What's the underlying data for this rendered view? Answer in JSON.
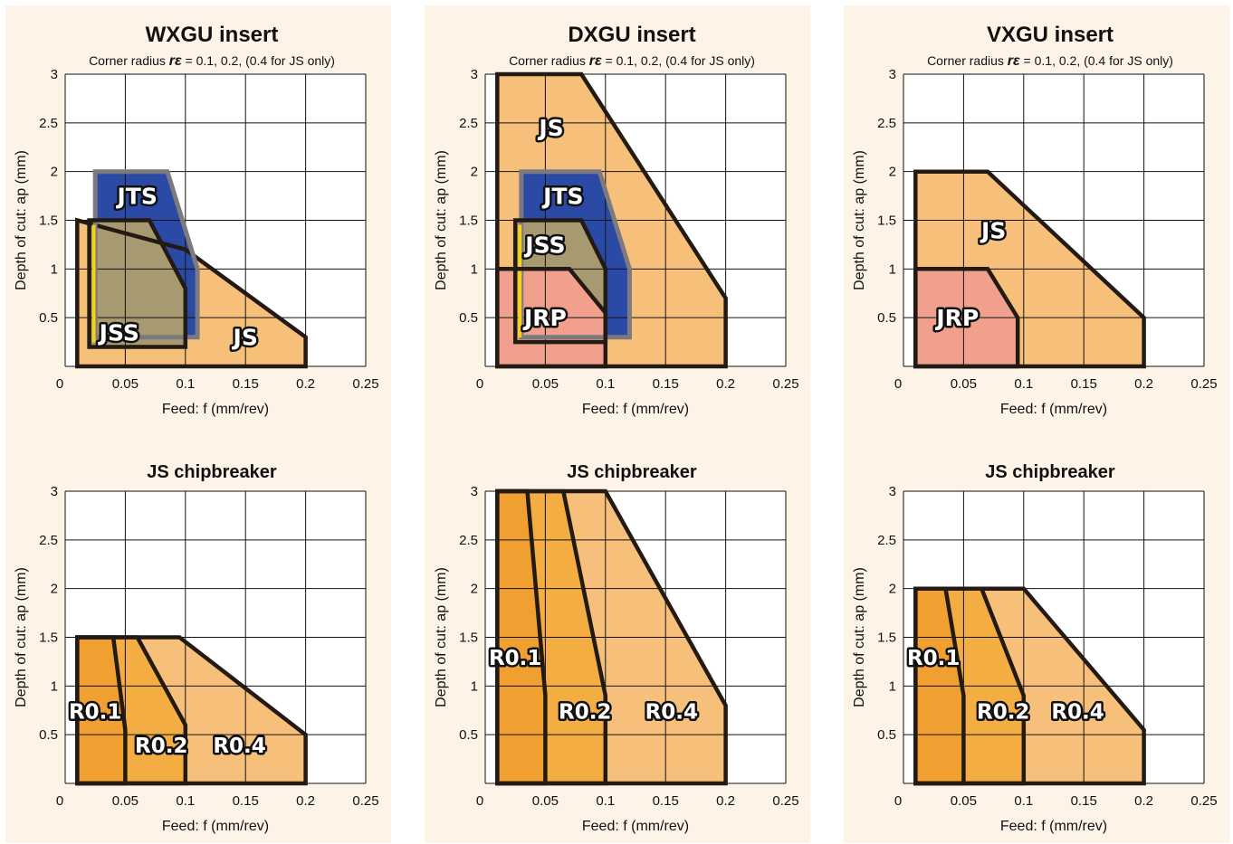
{
  "colors": {
    "panel_bg": "#fdf3e7",
    "grid": "#111111",
    "outline": "#231a14",
    "js_fill": "#f7c07a",
    "jts_fill": "#2a4aa6",
    "jts_edge": "#7a7a80",
    "jss_fill": "#a89a70",
    "jss_yellow": "#f5d21a",
    "jrp_fill": "#f0a08c",
    "r01_fill": "#f0a030",
    "r02_fill": "#f3ad43",
    "r04_fill": "#f7c07a"
  },
  "chart_data": [
    {
      "type": "area",
      "title": "WXGU insert",
      "subtitle_prefix": "Corner radius ",
      "subtitle_symbol": "rε",
      "subtitle_suffix": " = 0.1, 0.2, (0.4 for JS only)",
      "xlabel": "Feed: f  (mm/rev)",
      "ylabel": "Depth of cut: ap (mm)",
      "xlim": [
        0,
        0.25
      ],
      "ylim": [
        0,
        3
      ],
      "xticks": [
        "0",
        "0.05",
        "0.1",
        "0.15",
        "0.2",
        "0.25"
      ],
      "yticks": [
        "0.5",
        "1",
        "1.5",
        "2",
        "2.5",
        "3"
      ],
      "grid": true,
      "regions": [
        {
          "name": "JS",
          "points": [
            [
              0.01,
              0
            ],
            [
              0.01,
              1.5
            ],
            [
              0.1,
              1.2
            ],
            [
              0.2,
              0.3
            ],
            [
              0.2,
              0
            ]
          ],
          "label": [
            0.15,
            0.3
          ],
          "color": "js"
        },
        {
          "name": "JTS",
          "points": [
            [
              0.025,
              2.0
            ],
            [
              0.085,
              2.0
            ],
            [
              0.11,
              1.0
            ],
            [
              0.11,
              0.3
            ],
            [
              0.025,
              0.3
            ]
          ],
          "label": [
            0.06,
            1.75
          ],
          "color": "jts"
        },
        {
          "name": "JSS",
          "points": [
            [
              0.02,
              0.2
            ],
            [
              0.02,
              1.5
            ],
            [
              0.07,
              1.5
            ],
            [
              0.1,
              0.8
            ],
            [
              0.1,
              0.2
            ]
          ],
          "label": [
            0.045,
            0.35
          ],
          "color": "jss"
        }
      ]
    },
    {
      "type": "area",
      "title": "DXGU insert",
      "subtitle_prefix": "Corner radius ",
      "subtitle_symbol": "rε",
      "subtitle_suffix": " = 0.1, 0.2, (0.4 for JS only)",
      "xlabel": "Feed: f  (mm/rev)",
      "ylabel": "Depth of cut: ap (mm)",
      "xlim": [
        0,
        0.25
      ],
      "ylim": [
        0,
        3
      ],
      "xticks": [
        "0",
        "0.05",
        "0.1",
        "0.15",
        "0.2",
        "0.25"
      ],
      "yticks": [
        "0.5",
        "1",
        "1.5",
        "2",
        "2.5",
        "3"
      ],
      "grid": true,
      "regions": [
        {
          "name": "JS",
          "points": [
            [
              0.01,
              0
            ],
            [
              0.01,
              3.0
            ],
            [
              0.08,
              3.0
            ],
            [
              0.2,
              0.7
            ],
            [
              0.2,
              0
            ]
          ],
          "label": [
            0.055,
            2.45
          ],
          "color": "js"
        },
        {
          "name": "JTS",
          "points": [
            [
              0.03,
              2.0
            ],
            [
              0.095,
              2.0
            ],
            [
              0.12,
              1.0
            ],
            [
              0.12,
              0.3
            ],
            [
              0.03,
              0.3
            ]
          ],
          "label": [
            0.065,
            1.75
          ],
          "color": "jts"
        },
        {
          "name": "JSS",
          "points": [
            [
              0.025,
              0.25
            ],
            [
              0.025,
              1.5
            ],
            [
              0.08,
              1.5
            ],
            [
              0.1,
              1.0
            ],
            [
              0.1,
              0.25
            ]
          ],
          "label": [
            0.05,
            1.25
          ],
          "color": "jss"
        },
        {
          "name": "JRP",
          "points": [
            [
              0.01,
              0
            ],
            [
              0.01,
              1.0
            ],
            [
              0.07,
              1.0
            ],
            [
              0.1,
              0.55
            ],
            [
              0.1,
              0
            ]
          ],
          "label": [
            0.05,
            0.5
          ],
          "color": "jrp"
        }
      ]
    },
    {
      "type": "area",
      "title": "VXGU insert",
      "subtitle_prefix": "Corner radius ",
      "subtitle_symbol": "rε",
      "subtitle_suffix": " = 0.1, 0.2, (0.4 for JS only)",
      "xlabel": "Feed: f  (mm/rev)",
      "ylabel": "Depth of cut: ap (mm)",
      "xlim": [
        0,
        0.25
      ],
      "ylim": [
        0,
        3
      ],
      "xticks": [
        "0",
        "0.05",
        "0.1",
        "0.15",
        "0.2",
        "0.25"
      ],
      "yticks": [
        "0.5",
        "1",
        "1.5",
        "2",
        "2.5",
        "3"
      ],
      "grid": true,
      "regions": [
        {
          "name": "JS",
          "points": [
            [
              0.01,
              0
            ],
            [
              0.01,
              2.0
            ],
            [
              0.07,
              2.0
            ],
            [
              0.2,
              0.5
            ],
            [
              0.2,
              0
            ]
          ],
          "label": [
            0.075,
            1.4
          ],
          "color": "js"
        },
        {
          "name": "JRP",
          "points": [
            [
              0.01,
              0
            ],
            [
              0.01,
              1.0
            ],
            [
              0.07,
              1.0
            ],
            [
              0.095,
              0.5
            ],
            [
              0.095,
              0
            ]
          ],
          "label": [
            0.045,
            0.5
          ],
          "color": "jrp"
        }
      ]
    },
    {
      "type": "area",
      "title": "JS chipbreaker",
      "xlabel": "Feed: f  (mm/rev)",
      "ylabel": "Depth of cut: ap (mm)",
      "xlim": [
        0,
        0.25
      ],
      "ylim": [
        0,
        3
      ],
      "xticks": [
        "0",
        "0.05",
        "0.1",
        "0.15",
        "0.2",
        "0.25"
      ],
      "yticks": [
        "0.5",
        "1",
        "1.5",
        "2",
        "2.5",
        "3"
      ],
      "grid": true,
      "regions": [
        {
          "name": "R0.4",
          "points": [
            [
              0.01,
              0
            ],
            [
              0.01,
              1.5
            ],
            [
              0.095,
              1.5
            ],
            [
              0.2,
              0.5
            ],
            [
              0.2,
              0
            ]
          ],
          "label": [
            0.145,
            0.4
          ],
          "color": "r04"
        },
        {
          "name": "R0.2",
          "points": [
            [
              0.01,
              0
            ],
            [
              0.01,
              1.5
            ],
            [
              0.06,
              1.5
            ],
            [
              0.1,
              0.6
            ],
            [
              0.1,
              0
            ]
          ],
          "label": [
            0.08,
            0.4
          ],
          "color": "r02"
        },
        {
          "name": "R0.1",
          "points": [
            [
              0.01,
              0
            ],
            [
              0.01,
              1.5
            ],
            [
              0.04,
              1.5
            ],
            [
              0.05,
              0.55
            ],
            [
              0.05,
              0
            ]
          ],
          "label": [
            0.025,
            0.75
          ],
          "color": "r01"
        }
      ]
    },
    {
      "type": "area",
      "title": "JS chipbreaker",
      "xlabel": "Feed: f  (mm/rev)",
      "ylabel": "Depth of cut: ap (mm)",
      "xlim": [
        0,
        0.25
      ],
      "ylim": [
        0,
        3
      ],
      "xticks": [
        "0",
        "0.05",
        "0.1",
        "0.15",
        "0.2",
        "0.25"
      ],
      "yticks": [
        "0.5",
        "1",
        "1.5",
        "2",
        "2.5",
        "3"
      ],
      "grid": true,
      "regions": [
        {
          "name": "R0.4",
          "points": [
            [
              0.01,
              0
            ],
            [
              0.01,
              3.0
            ],
            [
              0.1,
              3.0
            ],
            [
              0.2,
              0.8
            ],
            [
              0.2,
              0
            ]
          ],
          "label": [
            0.155,
            0.75
          ],
          "color": "r04"
        },
        {
          "name": "R0.2",
          "points": [
            [
              0.01,
              0
            ],
            [
              0.01,
              3.0
            ],
            [
              0.065,
              3.0
            ],
            [
              0.1,
              0.9
            ],
            [
              0.1,
              0
            ]
          ],
          "label": [
            0.083,
            0.75
          ],
          "color": "r02"
        },
        {
          "name": "R0.1",
          "points": [
            [
              0.01,
              0
            ],
            [
              0.01,
              3.0
            ],
            [
              0.035,
              3.0
            ],
            [
              0.05,
              0.9
            ],
            [
              0.05,
              0
            ]
          ],
          "label": [
            0.025,
            1.3
          ],
          "color": "r01"
        }
      ]
    },
    {
      "type": "area",
      "title": "JS chipbreaker",
      "xlabel": "Feed: f  (mm/rev)",
      "ylabel": "Depth of cut: ap (mm)",
      "xlim": [
        0,
        0.25
      ],
      "ylim": [
        0,
        3
      ],
      "xticks": [
        "0",
        "0.05",
        "0.1",
        "0.15",
        "0.2",
        "0.25"
      ],
      "yticks": [
        "0.5",
        "1",
        "1.5",
        "2",
        "2.5",
        "3"
      ],
      "grid": true,
      "regions": [
        {
          "name": "R0.4",
          "points": [
            [
              0.01,
              0
            ],
            [
              0.01,
              2.0
            ],
            [
              0.1,
              2.0
            ],
            [
              0.2,
              0.55
            ],
            [
              0.2,
              0
            ]
          ],
          "label": [
            0.145,
            0.75
          ],
          "color": "r04"
        },
        {
          "name": "R0.2",
          "points": [
            [
              0.01,
              0
            ],
            [
              0.01,
              2.0
            ],
            [
              0.065,
              2.0
            ],
            [
              0.1,
              0.9
            ],
            [
              0.1,
              0
            ]
          ],
          "label": [
            0.083,
            0.75
          ],
          "color": "r02"
        },
        {
          "name": "R0.1",
          "points": [
            [
              0.01,
              0
            ],
            [
              0.01,
              2.0
            ],
            [
              0.035,
              2.0
            ],
            [
              0.05,
              0.9
            ],
            [
              0.05,
              0
            ]
          ],
          "label": [
            0.025,
            1.3
          ],
          "color": "r01"
        }
      ]
    }
  ]
}
